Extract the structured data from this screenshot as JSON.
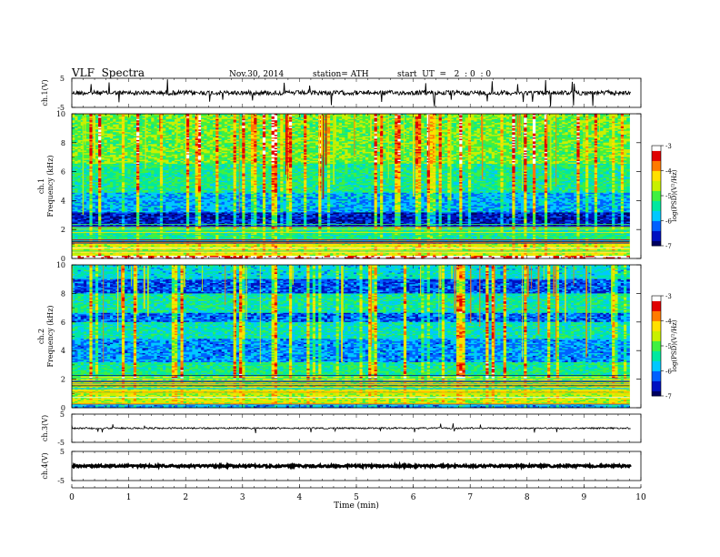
{
  "header": {
    "title": "VLF  Spectra",
    "date": "Nov.30, 2014",
    "station": "station= ATH",
    "start": "start  UT  =   2  : 0  : 0"
  },
  "chart_data": [
    {
      "type": "line",
      "panel": "ch1-waveform",
      "ylabel": "ch.1(V)",
      "ylim": [
        -5,
        5
      ],
      "yticks": [
        "5",
        "-5"
      ],
      "xlim": [
        0,
        10
      ],
      "description_values": {
        "mean": 0,
        "typical_range": [
          -0.5,
          0.5
        ]
      }
    },
    {
      "type": "heatmap",
      "panel": "ch1-spectrogram",
      "ylabel": "ch.1\nFrequency  (kHz)",
      "ylim": [
        0,
        10
      ],
      "yticks": [
        "0",
        "2",
        "4",
        "6",
        "8",
        "10"
      ],
      "xlim": [
        0,
        9.8
      ],
      "colorbar": {
        "label": "log(PSD)(V²/Hz)",
        "range": [
          -7,
          -3
        ],
        "ticks": [
          "-7",
          "-6",
          "-5",
          "-4",
          "-3"
        ]
      },
      "band_profile_khz": [
        {
          "f": [
            0,
            0.2
          ],
          "logpsd": -3.2
        },
        {
          "f": [
            0.2,
            1.2
          ],
          "logpsd": -4.5
        },
        {
          "f": [
            1.2,
            2.2
          ],
          "logpsd": -5.3
        },
        {
          "f": [
            2.2,
            3.2
          ],
          "logpsd": -6.6
        },
        {
          "f": [
            3.2,
            4.5
          ],
          "logpsd": -5.9
        },
        {
          "f": [
            4.5,
            6.5
          ],
          "logpsd": -5.3
        },
        {
          "f": [
            6.5,
            10
          ],
          "logpsd": -4.9
        }
      ]
    },
    {
      "type": "heatmap",
      "panel": "ch2-spectrogram",
      "ylabel": "ch.2\nFrequency  (kHz)",
      "ylim": [
        0,
        10
      ],
      "yticks": [
        "0",
        "2",
        "4",
        "6",
        "8",
        "10"
      ],
      "xlim": [
        0,
        9.8
      ],
      "colorbar": {
        "label": "log(PSD)(V²/Hz)",
        "range": [
          -7,
          -3
        ],
        "ticks": [
          "-7",
          "-6",
          "-5",
          "-4",
          "-3"
        ]
      },
      "band_profile_khz": [
        {
          "f": [
            0,
            0.2
          ],
          "logpsd": -6.0
        },
        {
          "f": [
            0.2,
            2.2
          ],
          "logpsd": -4.6
        },
        {
          "f": [
            2.2,
            3.2
          ],
          "logpsd": -5.3
        },
        {
          "f": [
            3.2,
            4.8
          ],
          "logpsd": -6.0
        },
        {
          "f": [
            4.8,
            6.0
          ],
          "logpsd": -5.5
        },
        {
          "f": [
            6.0,
            6.6
          ],
          "logpsd": -6.2
        },
        {
          "f": [
            6.6,
            8.0
          ],
          "logpsd": -5.4
        },
        {
          "f": [
            8.0,
            9.0
          ],
          "logpsd": -6.3
        },
        {
          "f": [
            9.0,
            10
          ],
          "logpsd": -5.6
        }
      ]
    },
    {
      "type": "line",
      "panel": "ch3-waveform",
      "ylabel": "ch.3(V)",
      "ylim": [
        -5,
        5
      ],
      "yticks": [
        "5",
        "-5"
      ],
      "xlim": [
        0,
        10
      ],
      "description_values": {
        "mean": 0,
        "typical_range": [
          -0.2,
          0.2
        ]
      }
    },
    {
      "type": "line",
      "panel": "ch4-waveform",
      "ylabel": "ch.4(V)",
      "ylim": [
        -5,
        5
      ],
      "yticks": [
        "5",
        "-5"
      ],
      "xlim": [
        0,
        10
      ],
      "xlabel": "Time  (min)",
      "xticks": [
        "0",
        "1",
        "2",
        "3",
        "4",
        "5",
        "6",
        "7",
        "8",
        "9",
        "10"
      ],
      "description_values": {
        "mean": 0,
        "typical_range": [
          -0.3,
          0.3
        ]
      }
    }
  ],
  "colors": {
    "colormap": [
      "#000060",
      "#0010c0",
      "#0060ff",
      "#00c8ff",
      "#00e8a0",
      "#40f040",
      "#c8f000",
      "#ffe000",
      "#ff7a00",
      "#e00000",
      "#ffffff"
    ]
  }
}
